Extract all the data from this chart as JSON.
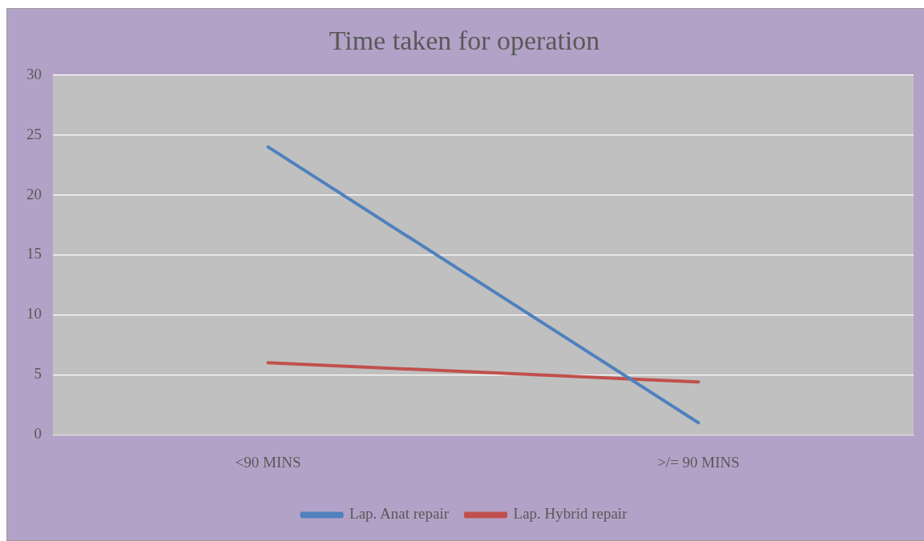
{
  "chart_data": {
    "type": "line",
    "title": "Time taken for operation",
    "categories": [
      "<90 MINS",
      ">/= 90 MINS"
    ],
    "series": [
      {
        "name": "Lap. Anat repair",
        "color": "#4f81bd",
        "values": [
          24,
          1
        ]
      },
      {
        "name": "Lap. Hybrid repair",
        "color": "#c0504d",
        "values": [
          6,
          4.4
        ]
      }
    ],
    "ylim": [
      0,
      30
    ],
    "yticks": [
      0,
      5,
      10,
      15,
      20,
      25,
      30
    ],
    "grid": "y",
    "legend": "bottom",
    "marker": "none",
    "line_style": "solid"
  }
}
